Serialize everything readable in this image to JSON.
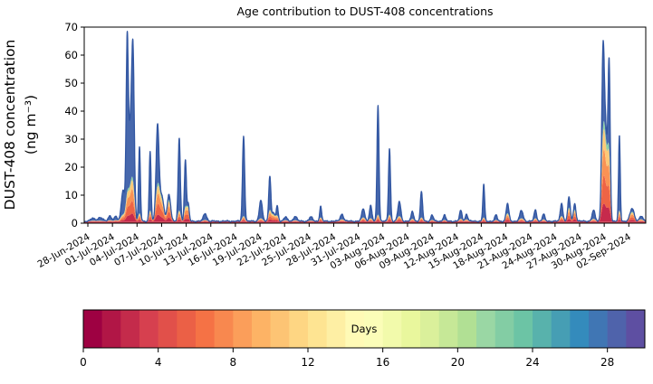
{
  "title": "Age contribution to DUST-408 concentrations",
  "y_axis": {
    "label_line1": "DUST-408 concentration",
    "label_line2": "(ng m⁻³)",
    "ticks": [
      0,
      10,
      20,
      30,
      40,
      50,
      60,
      70
    ],
    "ylim": [
      0,
      70
    ]
  },
  "x_axis": {
    "tick_interval_days": 3,
    "tick_labels": [
      "28-Jun-2024",
      "01-Jul-2024",
      "04-Jul-2024",
      "07-Jul-2024",
      "10-Jul-2024",
      "13-Jul-2024",
      "16-Jul-2024",
      "19-Jul-2024",
      "22-Jul-2024",
      "25-Jul-2024",
      "28-Jul-2024",
      "31-Jul-2024",
      "03-Aug-2024",
      "06-Aug-2024",
      "09-Aug-2024",
      "12-Aug-2024",
      "15-Aug-2024",
      "18-Aug-2024",
      "21-Aug-2024",
      "24-Aug-2024",
      "27-Aug-2024",
      "30-Aug-2024",
      "02-Sep-2024"
    ]
  },
  "chart_data": {
    "type": "area",
    "stacked_by": "particle age (days), Spectral colormap: young=red at bottom, old=blue on top",
    "title": "Age contribution to DUST-408 concentrations",
    "xlabel": "",
    "ylabel": "DUST-408 concentration (ng m⁻³)",
    "ylim": [
      0,
      70
    ],
    "x_domain_days_rel_28jun2024": [
      -0.44,
      68.07
    ],
    "grid": false,
    "baseline_total": 0.5,
    "baseline_red_band": 0.55,
    "noise": {
      "a1": 0.22,
      "f1": 7.3,
      "f2": 3.1,
      "p2": 1.7,
      "a3": 0.1,
      "f3": 23.7,
      "p3": 0.5
    },
    "peaks_columns": [
      "days_since_28jun2024",
      "total_peak_ng_m3",
      "sigma_days",
      "young_age_amp_ng_m3"
    ],
    "peaks": [
      [
        0.6,
        1.0,
        0.25,
        0.3
      ],
      [
        1.5,
        1.3,
        0.3,
        0.3
      ],
      [
        2.7,
        2.0,
        0.2,
        0.5
      ],
      [
        3.4,
        1.8,
        0.15,
        0.5
      ],
      [
        4.3,
        11.0,
        0.22,
        2.5
      ],
      [
        4.8,
        62.0,
        0.13,
        7.0
      ],
      [
        5.15,
        30.0,
        0.18,
        9.0
      ],
      [
        5.5,
        60.0,
        0.16,
        12.0
      ],
      [
        6.3,
        26.5,
        0.11,
        3.0
      ],
      [
        7.6,
        25.0,
        0.11,
        4.0
      ],
      [
        8.5,
        33.5,
        0.18,
        11.0
      ],
      [
        9.0,
        9.0,
        0.25,
        7.5
      ],
      [
        9.9,
        9.5,
        0.2,
        7.5
      ],
      [
        11.15,
        29.5,
        0.13,
        4.0
      ],
      [
        11.9,
        22.0,
        0.12,
        5.0
      ],
      [
        12.25,
        6.0,
        0.12,
        5.0
      ],
      [
        14.3,
        2.8,
        0.2,
        0.6
      ],
      [
        19.0,
        30.5,
        0.13,
        2.0
      ],
      [
        21.1,
        7.5,
        0.18,
        1.2
      ],
      [
        22.2,
        16.3,
        0.13,
        4.0
      ],
      [
        22.65,
        3.0,
        0.15,
        2.5
      ],
      [
        23.1,
        5.3,
        0.13,
        2.0
      ],
      [
        24.1,
        1.5,
        0.2,
        0.5
      ],
      [
        25.3,
        1.8,
        0.2,
        0.5
      ],
      [
        27.2,
        1.5,
        0.2,
        0.4
      ],
      [
        28.4,
        5.3,
        0.12,
        1.5
      ],
      [
        31.0,
        2.5,
        0.2,
        0.8
      ],
      [
        33.6,
        4.5,
        0.18,
        1.5
      ],
      [
        34.5,
        5.5,
        0.15,
        1.2
      ],
      [
        35.4,
        41.5,
        0.12,
        2.5
      ],
      [
        36.8,
        26.0,
        0.12,
        2.5
      ],
      [
        38.0,
        7.0,
        0.18,
        2.0
      ],
      [
        39.6,
        3.5,
        0.15,
        1.0
      ],
      [
        40.7,
        10.5,
        0.13,
        1.5
      ],
      [
        42.0,
        2.2,
        0.15,
        0.6
      ],
      [
        43.5,
        2.2,
        0.15,
        0.6
      ],
      [
        45.5,
        3.8,
        0.15,
        1.0
      ],
      [
        46.2,
        2.5,
        0.15,
        0.8
      ],
      [
        48.3,
        13.0,
        0.11,
        1.5
      ],
      [
        49.8,
        2.2,
        0.15,
        0.6
      ],
      [
        51.2,
        6.3,
        0.16,
        3.0
      ],
      [
        52.9,
        3.8,
        0.2,
        1.2
      ],
      [
        54.6,
        4.0,
        0.15,
        1.2
      ],
      [
        55.6,
        2.5,
        0.15,
        0.8
      ],
      [
        57.8,
        6.5,
        0.15,
        2.0
      ],
      [
        58.7,
        8.5,
        0.15,
        5.0
      ],
      [
        59.4,
        6.2,
        0.15,
        4.2
      ],
      [
        61.7,
        3.8,
        0.18,
        1.0
      ],
      [
        62.85,
        57.0,
        0.16,
        24.0
      ],
      [
        63.2,
        30.0,
        0.2,
        22.0
      ],
      [
        63.6,
        54.0,
        0.13,
        19.0
      ],
      [
        64.85,
        30.5,
        0.1,
        4.0
      ],
      [
        66.4,
        4.5,
        0.25,
        3.5
      ],
      [
        67.5,
        1.8,
        0.2,
        0.8
      ]
    ]
  },
  "colorbar": {
    "label": "Days",
    "range": [
      0,
      30
    ],
    "ticks": [
      0,
      4,
      8,
      12,
      16,
      20,
      24,
      28
    ],
    "n_steps": 30,
    "colors": [
      "#9e0142",
      "#b11646",
      "#c42b4b",
      "#d6404f",
      "#e1504a",
      "#eb6046",
      "#f57245",
      "#f8884f",
      "#fb9e5a",
      "#fdb365",
      "#fdc474",
      "#fed683",
      "#fee492",
      "#feefa4",
      "#fffab6",
      "#fbfdb8",
      "#f2faab",
      "#e9f79d",
      "#daf09b",
      "#c6e897",
      "#b1e094",
      "#9ad7a4",
      "#83cda4",
      "#6cc4a5",
      "#58b2ac",
      "#469eb4",
      "#348bbc",
      "#4076b4",
      "#4f63ab",
      "#5e4fa2"
    ]
  },
  "colors": {
    "old_fill": "#4768ad",
    "old_stroke": "#3156a2",
    "base_red": "#cf3e4e",
    "young_band_colors": [
      "#c62a4c",
      "#ee6445",
      "#fa9254",
      "#fdc878",
      "#8fd0a5"
    ],
    "young_band_fractions": [
      0.18,
      0.28,
      0.26,
      0.2,
      0.08
    ],
    "axis_color": "#000000"
  }
}
